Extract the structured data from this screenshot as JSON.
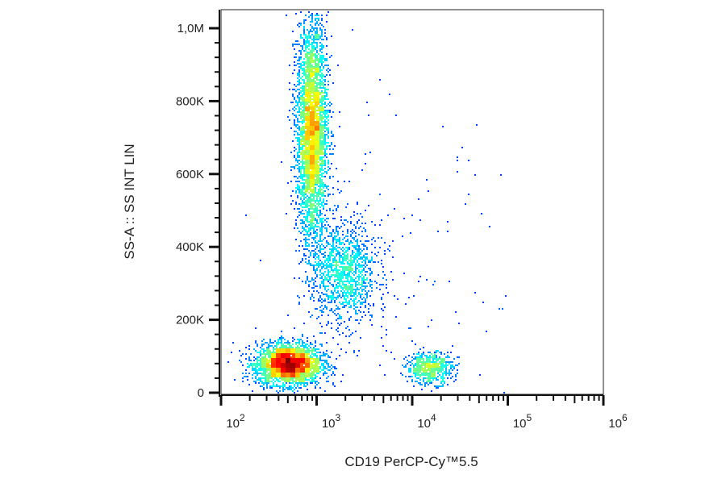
{
  "chart_data": {
    "type": "scatter",
    "title": "",
    "xlabel": "CD19 PerCP-Cy™5.5",
    "ylabel": "SS-A :: SS INT LIN",
    "x_scale": "log",
    "xlim": [
      100,
      1000000
    ],
    "ylim": [
      0,
      1050000
    ],
    "x_ticks": [
      {
        "value": 100,
        "base": "10",
        "exp": "2"
      },
      {
        "value": 1000,
        "base": "10",
        "exp": "3"
      },
      {
        "value": 10000,
        "base": "10",
        "exp": "4"
      },
      {
        "value": 100000,
        "base": "10",
        "exp": "5"
      },
      {
        "value": 1000000,
        "base": "10",
        "exp": "6"
      }
    ],
    "y_ticks": [
      {
        "value": 0,
        "label": "0"
      },
      {
        "value": 200000,
        "label": "200K"
      },
      {
        "value": 400000,
        "label": "400K"
      },
      {
        "value": 600000,
        "label": "600K"
      },
      {
        "value": 800000,
        "label": "800K"
      },
      {
        "value": 1000000,
        "label": "1,0M"
      }
    ],
    "grid": false,
    "coloring": "density (blue → green → yellow → red)",
    "populations": [
      {
        "x_center": 500,
        "x_log_sd": 0.17,
        "y_center": 80000,
        "y_sd": 28000,
        "count": 3200
      },
      {
        "x_center": 880,
        "x_log_sd": 0.08,
        "y_center": 720000,
        "y_sd": 150000,
        "count": 4200
      },
      {
        "x_center": 1900,
        "x_log_sd": 0.17,
        "y_center": 330000,
        "y_sd": 70000,
        "count": 1300
      },
      {
        "x_center": 15000,
        "x_log_sd": 0.12,
        "y_center": 70000,
        "y_sd": 22000,
        "count": 650
      },
      {
        "x_center": 5000,
        "x_log_sd": 0.6,
        "y_center": 300000,
        "y_sd": 250000,
        "count": 160
      }
    ],
    "colors": {
      "low": "#0000ff",
      "mid": "#00ff80",
      "high": "#ff0000"
    }
  }
}
